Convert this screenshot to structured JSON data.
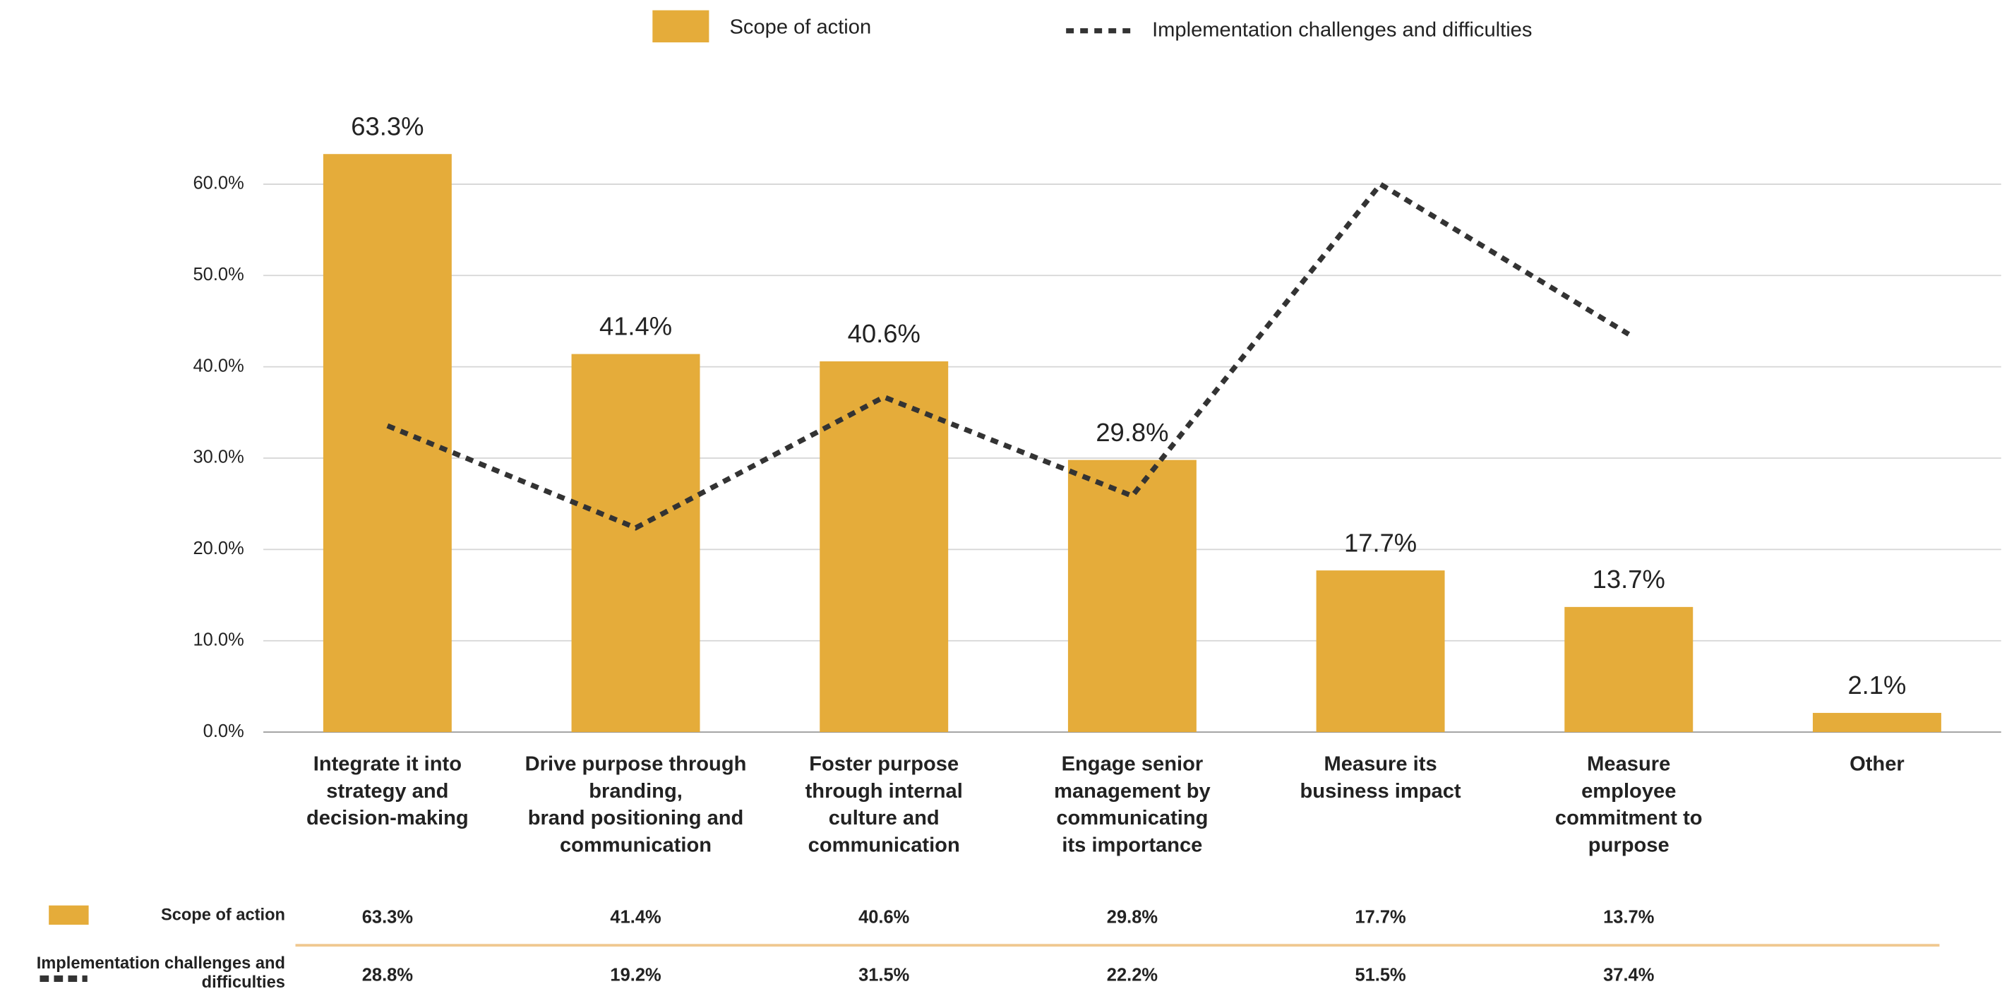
{
  "chart_data": {
    "type": "bar",
    "categories": [
      "Integrate it into\nstrategy and\ndecision-making",
      "Drive purpose through\nbranding,\nbrand positioning and\ncommunication",
      "Foster purpose\nthrough internal\nculture and\ncommunication",
      "Engage senior\nmanagement by\ncommunicating\nits importance",
      "Measure its\nbusiness impact",
      "Measure\nemployee\ncommitment to\npurpose",
      "Other"
    ],
    "series": [
      {
        "name": "Scope of action",
        "type": "bar",
        "color": "#e5ac3a",
        "values": [
          63.3,
          41.4,
          40.6,
          29.8,
          17.7,
          13.7,
          2.1
        ],
        "value_labels": [
          "63.3%",
          "41.4%",
          "40.6%",
          "29.8%",
          "17.7%",
          "13.7%",
          "2.1%"
        ]
      },
      {
        "name": "Implementation challenges and difficulties",
        "type": "line",
        "color": "#333333",
        "axis": "y2",
        "values": [
          28.8,
          19.2,
          31.5,
          22.2,
          51.5,
          37.4,
          null
        ]
      }
    ],
    "ylim": [
      0,
      65
    ],
    "yticks": [
      {
        "value": 0,
        "label": "0.0%"
      },
      {
        "value": 10,
        "label": "10.0%"
      },
      {
        "value": 20,
        "label": "20.0%"
      },
      {
        "value": 30,
        "label": "30.0%"
      },
      {
        "value": 40,
        "label": "40.0%"
      },
      {
        "value": 50,
        "label": "50.0%"
      },
      {
        "value": 60,
        "label": "60.0%"
      }
    ],
    "y2lim": [
      0,
      55.8
    ],
    "grid": true,
    "legend": "top",
    "table": {
      "rows": [
        [
          "63.3%",
          "41.4%",
          "40.6%",
          "29.8%",
          "17.7%",
          "13.7%"
        ],
        [
          "28.8%",
          "19.2%",
          "31.5%",
          "22.2%",
          "51.5%",
          "37.4%"
        ]
      ]
    }
  }
}
